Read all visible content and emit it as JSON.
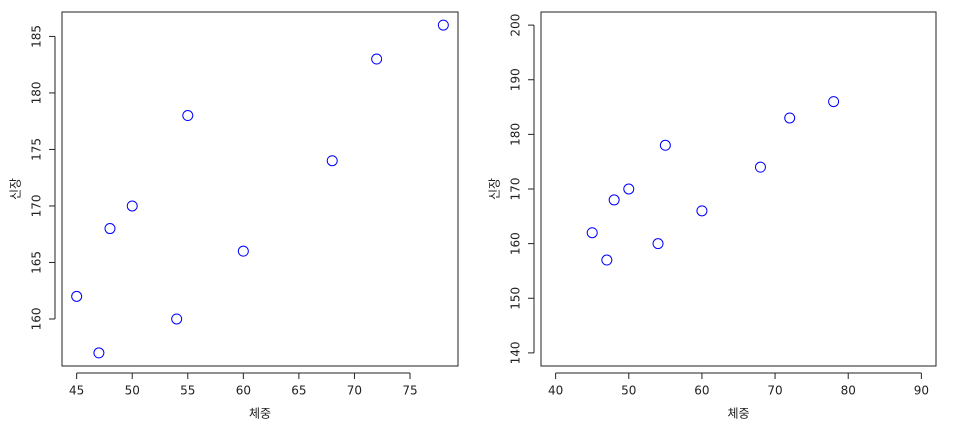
{
  "chart_data": [
    {
      "type": "scatter",
      "x_label": "체중",
      "y_label": "신장",
      "x": [
        45,
        47,
        48,
        50,
        54,
        55,
        60,
        68,
        72,
        78
      ],
      "y": [
        162,
        157,
        168,
        170,
        160,
        178,
        166,
        174,
        183,
        186
      ],
      "color": "#0000ff",
      "xlim": [
        43.68,
        79.32
      ],
      "ylim": [
        155.84,
        187.16
      ],
      "xticks": [
        45,
        50,
        55,
        60,
        65,
        70,
        75
      ],
      "yticks": [
        160,
        165,
        170,
        175,
        180,
        185
      ]
    },
    {
      "type": "scatter",
      "x_label": "체중",
      "y_label": "신장",
      "x": [
        45,
        47,
        48,
        50,
        54,
        55,
        60,
        68,
        72,
        78
      ],
      "y": [
        162,
        157,
        168,
        170,
        160,
        178,
        166,
        174,
        183,
        186
      ],
      "color": "#0000ff",
      "xlim": [
        38,
        92
      ],
      "ylim": [
        137.6,
        202.4
      ],
      "xticks": [
        40,
        50,
        60,
        70,
        80,
        90
      ],
      "yticks": [
        140,
        150,
        160,
        170,
        180,
        190,
        200
      ]
    }
  ]
}
